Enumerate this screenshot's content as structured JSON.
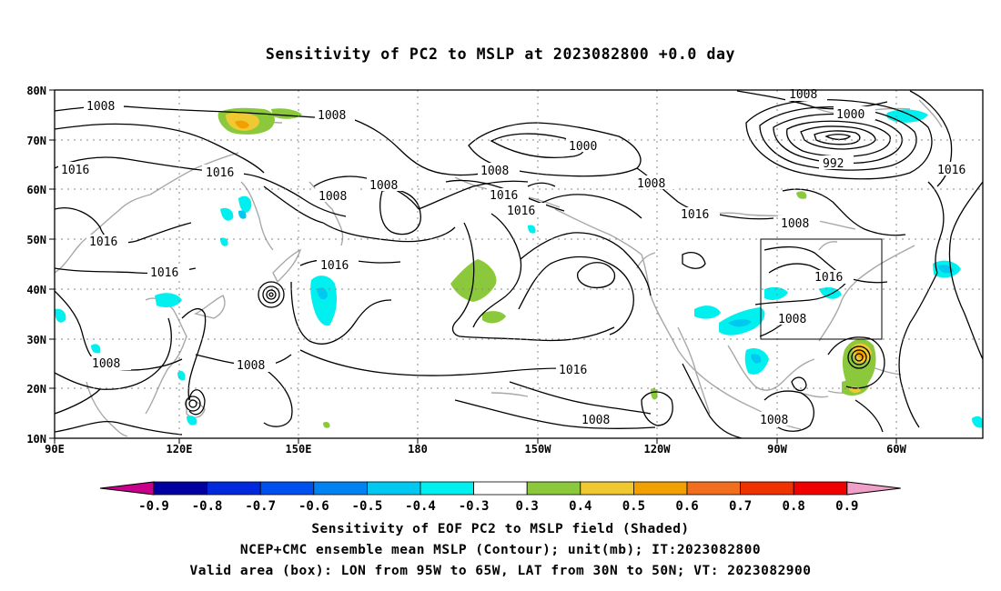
{
  "title": "Sensitivity of PC2 to MSLP at 2023082800 +0.0 day",
  "map": {
    "lon_ticks": [
      "90E",
      "120E",
      "150E",
      "180",
      "150W",
      "120W",
      "90W",
      "60W"
    ],
    "lat_ticks": [
      "80N",
      "70N",
      "60N",
      "50N",
      "40N",
      "30N",
      "20N",
      "10N"
    ],
    "contour_labels": [
      {
        "name": "contour-label-1008-a",
        "text": "1008"
      },
      {
        "name": "contour-label-1008-b",
        "text": "1008"
      },
      {
        "name": "contour-label-1008-c",
        "text": "1008"
      },
      {
        "name": "contour-label-1008-d",
        "text": "1008"
      },
      {
        "name": "contour-label-1000-a",
        "text": "1000"
      },
      {
        "name": "contour-label-1000-b",
        "text": "1000"
      },
      {
        "name": "contour-label-992",
        "text": "992"
      },
      {
        "name": "contour-label-1016-a",
        "text": "1016"
      },
      {
        "name": "contour-label-1016-b",
        "text": "1016"
      },
      {
        "name": "contour-label-1008-e",
        "text": "1008"
      },
      {
        "name": "contour-label-1008-f",
        "text": "1008"
      },
      {
        "name": "contour-label-1008-g",
        "text": "1008"
      },
      {
        "name": "contour-label-1016-c",
        "text": "1016"
      },
      {
        "name": "contour-label-1016-d",
        "text": "1016"
      },
      {
        "name": "contour-label-1016-e",
        "text": "1016"
      },
      {
        "name": "contour-label-1016-f",
        "text": "1016"
      },
      {
        "name": "contour-label-1016-g",
        "text": "1016"
      },
      {
        "name": "contour-label-1008-h",
        "text": "1008"
      },
      {
        "name": "contour-label-1016-h",
        "text": "1016"
      },
      {
        "name": "contour-label-1016-i",
        "text": "1016"
      },
      {
        "name": "contour-label-1016-j",
        "text": "1016"
      },
      {
        "name": "contour-label-1008-i",
        "text": "1008"
      },
      {
        "name": "contour-label-1008-j",
        "text": "1008"
      },
      {
        "name": "contour-label-1016-k",
        "text": "1016"
      },
      {
        "name": "contour-label-1008-k",
        "text": "1008"
      },
      {
        "name": "contour-label-1008-l",
        "text": "1008"
      },
      {
        "name": "contour-label-1008-m",
        "text": "1008"
      }
    ]
  },
  "colorbar": {
    "labels": [
      "-0.9",
      "-0.8",
      "-0.7",
      "-0.6",
      "-0.5",
      "-0.4",
      "-0.3",
      "0.3",
      "0.4",
      "0.5",
      "0.6",
      "0.7",
      "0.8",
      "0.9"
    ],
    "colors": [
      "#0000a0",
      "#0028dc",
      "#0050f0",
      "#0082f0",
      "#00c8f0",
      "#00f0f0",
      "#ffffff",
      "#8cc83c",
      "#f0c832",
      "#f0a000",
      "#f06e1e",
      "#f03200",
      "#f00000"
    ],
    "low_triangle_color": "#c8008c",
    "high_triangle_color": "#f0a0c8"
  },
  "captions": {
    "line1": "Sensitivity of EOF PC2 to MSLP field (Shaded)",
    "line2": "NCEP+CMC ensemble mean MSLP (Contour); unit(mb); IT:2023082800",
    "line3": "Valid area (box): LON from 95W to 65W, LAT from 30N to 50N; VT: 2023082900"
  }
}
